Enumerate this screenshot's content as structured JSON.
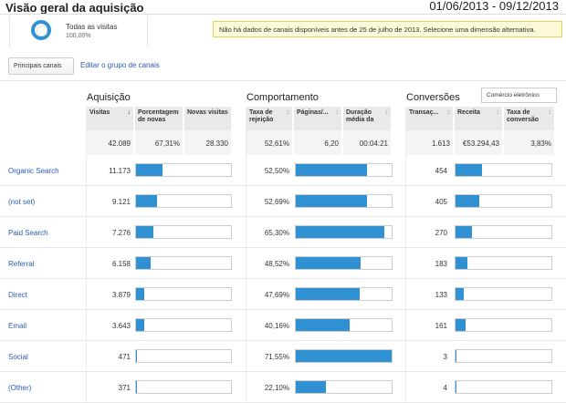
{
  "header": {
    "title": "Visão geral da aquisição",
    "date_range": "01/06/2013 - 09/12/2013"
  },
  "segment": {
    "label": "Todas as visitas",
    "percent": "100,00%"
  },
  "notice": "Não há dados de canais disponíveis antes de 25 de julho de 2013. Selecione uma dimensão alternativa.",
  "toolbar": {
    "channel_group_select": "Principais canais",
    "edit_link": "Editar o grupo de canais"
  },
  "groups": {
    "acquisition": "Aquisição",
    "behavior": "Comportamento",
    "conversions": "Conversões",
    "conversions_select": "Comércio eletrônico"
  },
  "columns": [
    {
      "label": "Visitas",
      "sorted": true
    },
    {
      "label": "Porcentagem de novas",
      "sorted": false
    },
    {
      "label": "Novas visitas",
      "sorted": false
    },
    {
      "label": "Taxa de rejeição",
      "sorted": false
    },
    {
      "label": "Páginas/...",
      "sorted": false
    },
    {
      "label": "Duração média da",
      "sorted": false
    },
    {
      "label": "Transaç...",
      "sorted": false
    },
    {
      "label": "Receita",
      "sorted": false
    },
    {
      "label": "Taxa de conversão",
      "sorted": false
    }
  ],
  "totals": [
    "42.089",
    "67,31%",
    "28.330",
    "52,61%",
    "6,20",
    "00:04:21",
    "1.613",
    "€53.294,43",
    "3,83%"
  ],
  "rows": [
    {
      "channel": "Organic Search",
      "visits": "11.173",
      "visits_share": 0.28,
      "bounce_rate": "52,50%",
      "pages_share": 0.74,
      "transactions": "454",
      "revenue_share": 0.28
    },
    {
      "channel": "(not set)",
      "visits": "9.121",
      "visits_share": 0.22,
      "bounce_rate": "52,69%",
      "pages_share": 0.74,
      "transactions": "405",
      "revenue_share": 0.25
    },
    {
      "channel": "Paid Search",
      "visits": "7.276",
      "visits_share": 0.18,
      "bounce_rate": "65,30%",
      "pages_share": 0.92,
      "transactions": "270",
      "revenue_share": 0.17
    },
    {
      "channel": "Referral",
      "visits": "6.158",
      "visits_share": 0.15,
      "bounce_rate": "48,52%",
      "pages_share": 0.68,
      "transactions": "183",
      "revenue_share": 0.12
    },
    {
      "channel": "Direct",
      "visits": "3.879",
      "visits_share": 0.09,
      "bounce_rate": "47,69%",
      "pages_share": 0.67,
      "transactions": "133",
      "revenue_share": 0.09
    },
    {
      "channel": "Email",
      "visits": "3.643",
      "visits_share": 0.09,
      "bounce_rate": "40,16%",
      "pages_share": 0.56,
      "transactions": "161",
      "revenue_share": 0.1
    },
    {
      "channel": "Social",
      "visits": "471",
      "visits_share": 0.01,
      "bounce_rate": "71,55%",
      "pages_share": 1.0,
      "transactions": "3",
      "revenue_share": 0.01
    },
    {
      "channel": "(Other)",
      "visits": "371",
      "visits_share": 0.01,
      "bounce_rate": "22,10%",
      "pages_share": 0.31,
      "transactions": "4",
      "revenue_share": 0.01
    }
  ],
  "colors": {
    "bar": "#2f91d2",
    "link": "#2a5db0",
    "notice_bg": "#fdfad9"
  }
}
